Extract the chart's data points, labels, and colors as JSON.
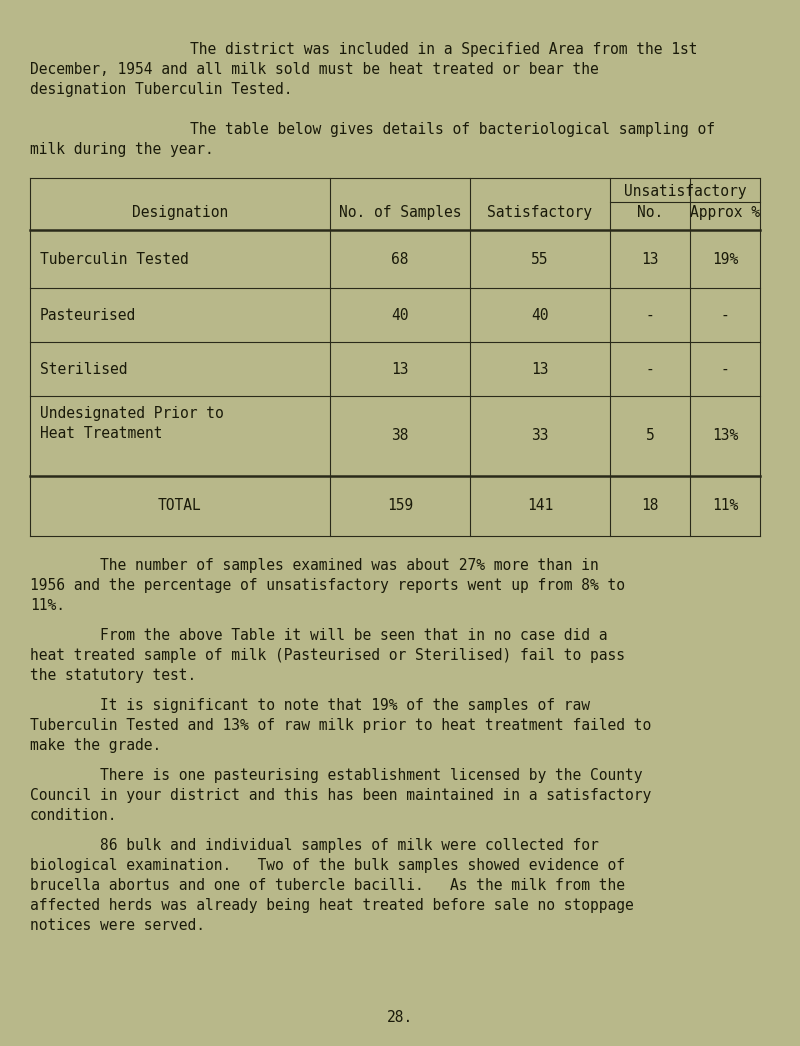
{
  "bg_color": "#b8b88a",
  "text_color": "#1a1a0a",
  "para1_line1": "        The district was included in a Specified Area from the 1st",
  "para1_line2": "December, 1954 and all milk sold must be heat treated or bear the",
  "para1_line3": "designation Tuberculin Tested.",
  "para2_line1": "        The table below gives details of bacteriological sampling of",
  "para2_line2": "milk during the year.",
  "table_header_unsat": "Unsatisfactory",
  "table_header_desig": "Designation",
  "table_header_nos": "No. of Samples",
  "table_header_sat": "Satisfactory",
  "table_header_no": "No.",
  "table_header_approx": "Approx %",
  "table_rows": [
    [
      "Tuberculin Tested",
      "68",
      "55",
      "13",
      "19%"
    ],
    [
      "Pasteurised",
      "40",
      "40",
      "-",
      "-"
    ],
    [
      "Sterilised",
      "13",
      "13",
      "-",
      "-"
    ],
    [
      "Undesignated Prior to\nHeat Treatment",
      "38",
      "33",
      "5",
      "13%"
    ]
  ],
  "table_total_row": [
    "TOTAL",
    "159",
    "141",
    "18",
    "11%"
  ],
  "para3_line1": "        The number of samples examined was about 27% more than in",
  "para3_line2": "1956 and the percentage of unsatisfactory reports went up from 8% to",
  "para3_line3": "11%.",
  "para4_line1": "        From the above Table it will be seen that in no case did a",
  "para4_line2": "heat treated sample of milk (Pasteurised or Sterilised) fail to pass",
  "para4_line3": "the statutory test.",
  "para5_line1": "        It is significant to note that 19% of the samples of raw",
  "para5_line2": "Tuberculin Tested and 13% of raw milk prior to heat treatment failed to",
  "para5_line3": "make the grade.",
  "para6_line1": "        There is one pasteurising establishment licensed by the County",
  "para6_line2": "Council in your district and this has been maintained in a satisfactory",
  "para6_line3": "condition.",
  "para7_line1": "        86 bulk and individual samples of milk were collected for",
  "para7_line2": "biological examination.   Two of the bulk samples showed evidence of",
  "para7_line3": "brucella abortus and one of tubercle bacilli.   As the milk from the",
  "para7_line4": "affected herds was already being heat treated before sale no stoppage",
  "para7_line5": "notices were served.",
  "page_number": "28."
}
